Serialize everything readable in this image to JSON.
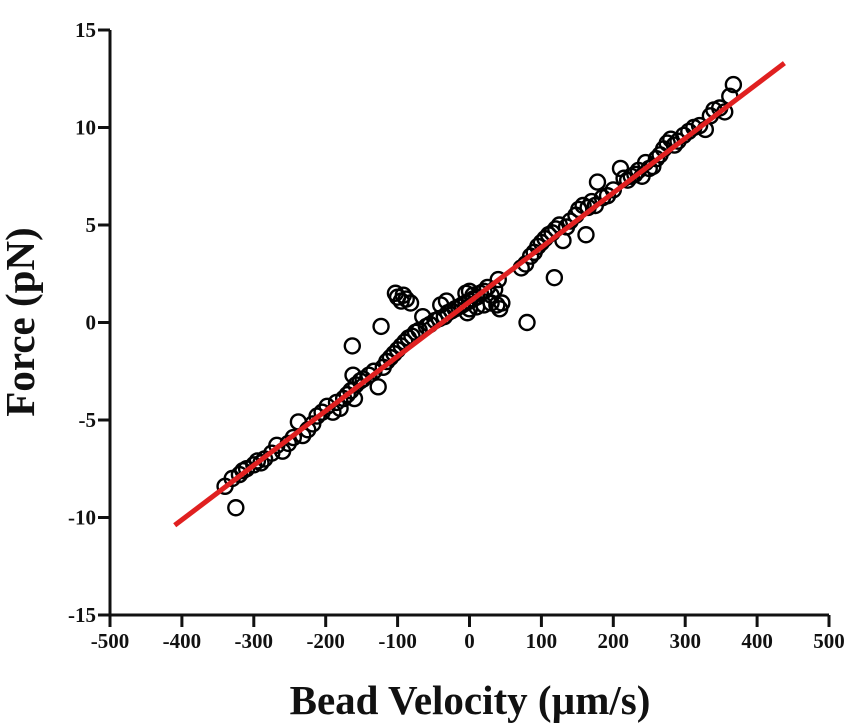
{
  "chart_data": {
    "type": "scatter",
    "title": "",
    "xlabel": "Bead Velocity (µm/s)",
    "ylabel": "Force (pN)",
    "xlim": [
      -500,
      500
    ],
    "ylim": [
      -15,
      15
    ],
    "xticks": [
      -500,
      -400,
      -300,
      -200,
      -100,
      0,
      100,
      200,
      300,
      400,
      500
    ],
    "yticks": [
      -15,
      -10,
      -5,
      0,
      5,
      10,
      15
    ],
    "xtick_labels": [
      "-500",
      "-400",
      "-300",
      "-200",
      "-100",
      "0",
      "100",
      "200",
      "300",
      "400",
      "500"
    ],
    "ytick_labels": [
      "-15",
      "-10",
      "-5",
      "0",
      "5",
      "10",
      "15"
    ],
    "grid": false,
    "series": [
      {
        "name": "measurements",
        "marker": "open-circle",
        "color": "#000000",
        "points": [
          [
            -340,
            -8.4
          ],
          [
            -330,
            -8.0
          ],
          [
            -325,
            -9.5
          ],
          [
            -320,
            -7.8
          ],
          [
            -315,
            -7.6
          ],
          [
            -310,
            -7.5
          ],
          [
            -300,
            -7.3
          ],
          [
            -295,
            -7.1
          ],
          [
            -290,
            -7.2
          ],
          [
            -285,
            -7.0
          ],
          [
            -275,
            -6.7
          ],
          [
            -268,
            -6.3
          ],
          [
            -260,
            -6.6
          ],
          [
            -252,
            -6.2
          ],
          [
            -245,
            -5.9
          ],
          [
            -238,
            -5.1
          ],
          [
            -232,
            -5.8
          ],
          [
            -225,
            -5.5
          ],
          [
            -218,
            -5.2
          ],
          [
            -212,
            -4.8
          ],
          [
            -205,
            -4.6
          ],
          [
            -198,
            -4.3
          ],
          [
            -190,
            -4.6
          ],
          [
            -185,
            -4.1
          ],
          [
            -180,
            -4.4
          ],
          [
            -175,
            -3.9
          ],
          [
            -170,
            -3.7
          ],
          [
            -165,
            -3.5
          ],
          [
            -160,
            -3.9
          ],
          [
            -162,
            -2.7
          ],
          [
            -158,
            -3.2
          ],
          [
            -152,
            -3.0
          ],
          [
            -148,
            -2.9
          ],
          [
            -140,
            -2.7
          ],
          [
            -133,
            -2.5
          ],
          [
            -127,
            -3.3
          ],
          [
            -120,
            -2.3
          ],
          [
            -115,
            -2.0
          ],
          [
            -110,
            -1.8
          ],
          [
            -105,
            -1.6
          ],
          [
            -100,
            -1.4
          ],
          [
            -95,
            -1.2
          ],
          [
            -90,
            -1.0
          ],
          [
            -85,
            -0.8
          ],
          [
            -80,
            -0.7
          ],
          [
            -75,
            -0.5
          ],
          [
            -70,
            -0.4
          ],
          [
            -60,
            -0.2
          ],
          [
            -55,
            -0.1
          ],
          [
            -48,
            0.1
          ],
          [
            -42,
            0.2
          ],
          [
            -35,
            0.3
          ],
          [
            -30,
            0.5
          ],
          [
            -25,
            0.6
          ],
          [
            -20,
            0.7
          ],
          [
            -15,
            0.8
          ],
          [
            -10,
            0.9
          ],
          [
            -5,
            1.0
          ],
          [
            0,
            1.1
          ],
          [
            5,
            1.2
          ],
          [
            -5,
            1.5
          ],
          [
            0,
            1.6
          ],
          [
            5,
            1.4
          ],
          [
            10,
            1.3
          ],
          [
            15,
            1.5
          ],
          [
            20,
            1.6
          ],
          [
            25,
            1.8
          ],
          [
            30,
            1.4
          ],
          [
            35,
            1.7
          ],
          [
            40,
            2.2
          ],
          [
            45,
            1.0
          ],
          [
            42,
            0.7
          ],
          [
            38,
            0.9
          ],
          [
            30,
            1.0
          ],
          [
            20,
            0.9
          ],
          [
            10,
            0.8
          ],
          [
            0,
            0.7
          ],
          [
            -3,
            0.5
          ],
          [
            -32,
            1.1
          ],
          [
            -40,
            0.9
          ],
          [
            -65,
            0.3
          ],
          [
            -88,
            1.2
          ],
          [
            -95,
            1.1
          ],
          [
            -100,
            1.3
          ],
          [
            -103,
            1.5
          ],
          [
            -92,
            1.4
          ],
          [
            -82,
            1.0
          ],
          [
            -123,
            -0.2
          ],
          [
            -163,
            -1.2
          ],
          [
            72,
            2.8
          ],
          [
            78,
            3.0
          ],
          [
            85,
            3.4
          ],
          [
            90,
            3.6
          ],
          [
            95,
            3.9
          ],
          [
            100,
            4.1
          ],
          [
            105,
            4.3
          ],
          [
            110,
            4.5
          ],
          [
            115,
            4.6
          ],
          [
            118,
            2.3
          ],
          [
            120,
            4.8
          ],
          [
            125,
            5.0
          ],
          [
            130,
            4.2
          ],
          [
            135,
            4.9
          ],
          [
            140,
            5.2
          ],
          [
            148,
            5.5
          ],
          [
            152,
            5.8
          ],
          [
            158,
            6.0
          ],
          [
            162,
            4.5
          ],
          [
            165,
            5.9
          ],
          [
            170,
            6.2
          ],
          [
            175,
            6.0
          ],
          [
            178,
            7.2
          ],
          [
            185,
            6.4
          ],
          [
            192,
            6.5
          ],
          [
            200,
            6.8
          ],
          [
            210,
            7.9
          ],
          [
            215,
            7.4
          ],
          [
            220,
            7.3
          ],
          [
            225,
            7.5
          ],
          [
            230,
            7.6
          ],
          [
            235,
            7.8
          ],
          [
            240,
            7.5
          ],
          [
            245,
            8.2
          ],
          [
            250,
            7.9
          ],
          [
            255,
            8.0
          ],
          [
            260,
            8.4
          ],
          [
            265,
            8.6
          ],
          [
            270,
            8.9
          ],
          [
            275,
            9.2
          ],
          [
            280,
            9.4
          ],
          [
            285,
            9.1
          ],
          [
            290,
            9.3
          ],
          [
            298,
            9.6
          ],
          [
            305,
            9.8
          ],
          [
            312,
            10.0
          ],
          [
            320,
            10.1
          ],
          [
            328,
            9.9
          ],
          [
            335,
            10.6
          ],
          [
            340,
            10.9
          ],
          [
            348,
            11.0
          ],
          [
            355,
            10.8
          ],
          [
            362,
            11.6
          ],
          [
            367,
            12.2
          ],
          [
            80,
            0.0
          ]
        ]
      }
    ],
    "fit_line": {
      "name": "linear fit",
      "color": "#e02020",
      "x": [
        -410,
        438
      ],
      "y": [
        -10.4,
        13.3
      ]
    }
  }
}
